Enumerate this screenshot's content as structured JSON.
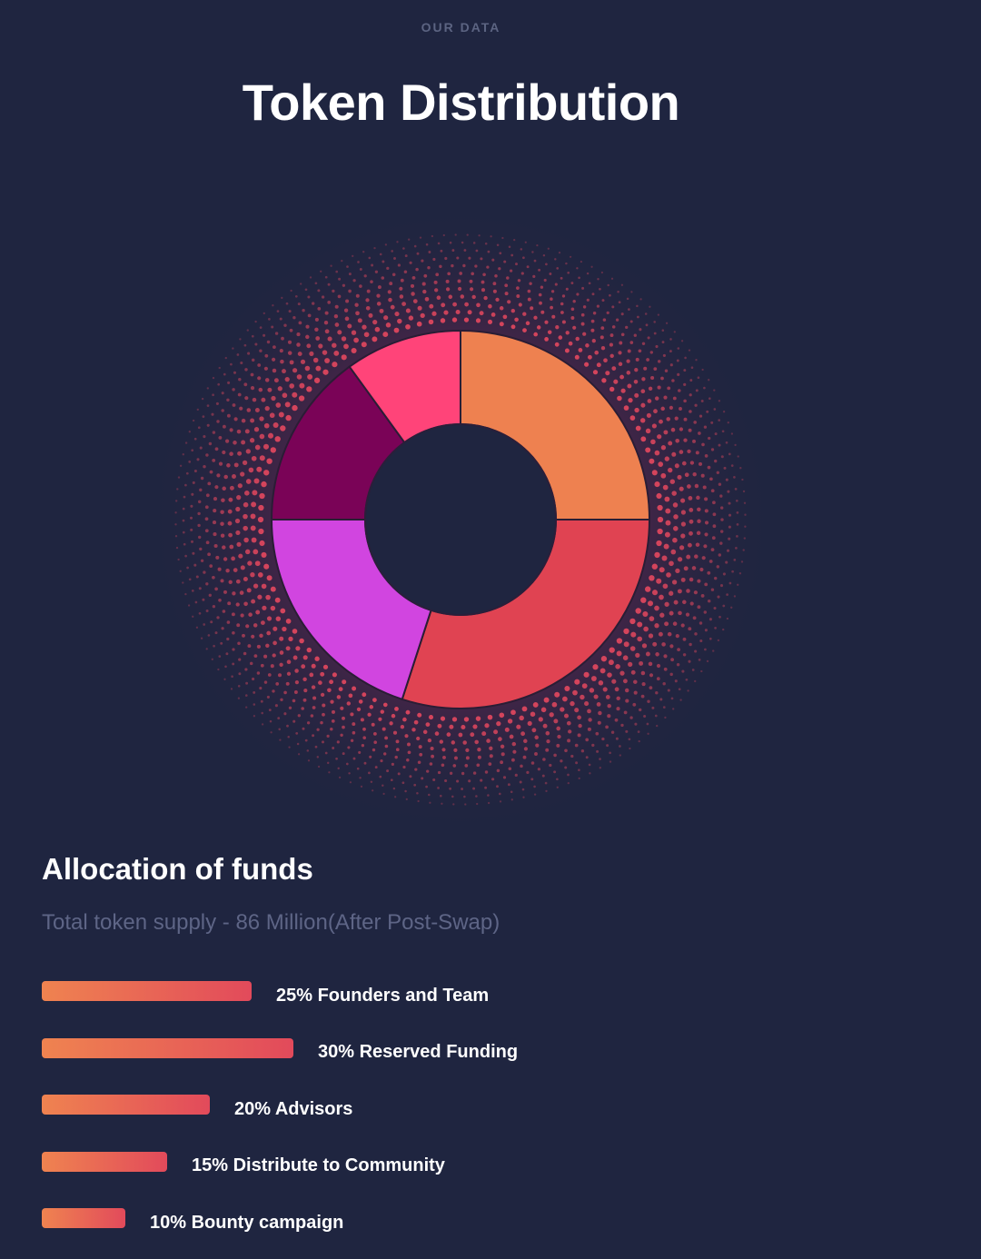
{
  "header": {
    "eyebrow": "OUR DATA",
    "title": "Token Distribution"
  },
  "allocation": {
    "heading": "Allocation of funds",
    "supply": "Total token supply - 86 Million(After Post-Swap)"
  },
  "colors": {
    "background": "#1f2540",
    "bar_start": "#ef8350",
    "bar_end": "#e24a5b"
  },
  "chart_data": {
    "type": "pie",
    "series": [
      {
        "label": "25% Founders and Team",
        "value": 25,
        "color": "#ee8150"
      },
      {
        "label": "30% Reserved Funding",
        "value": 30,
        "color": "#e04352"
      },
      {
        "label": "20% Advisors",
        "value": 20,
        "color": "#d145e0"
      },
      {
        "label": "15% Distribute to Community",
        "value": 15,
        "color": "#7a0357"
      },
      {
        "label": "10% Bounty campaign",
        "value": 10,
        "color": "#ff4479"
      }
    ]
  }
}
